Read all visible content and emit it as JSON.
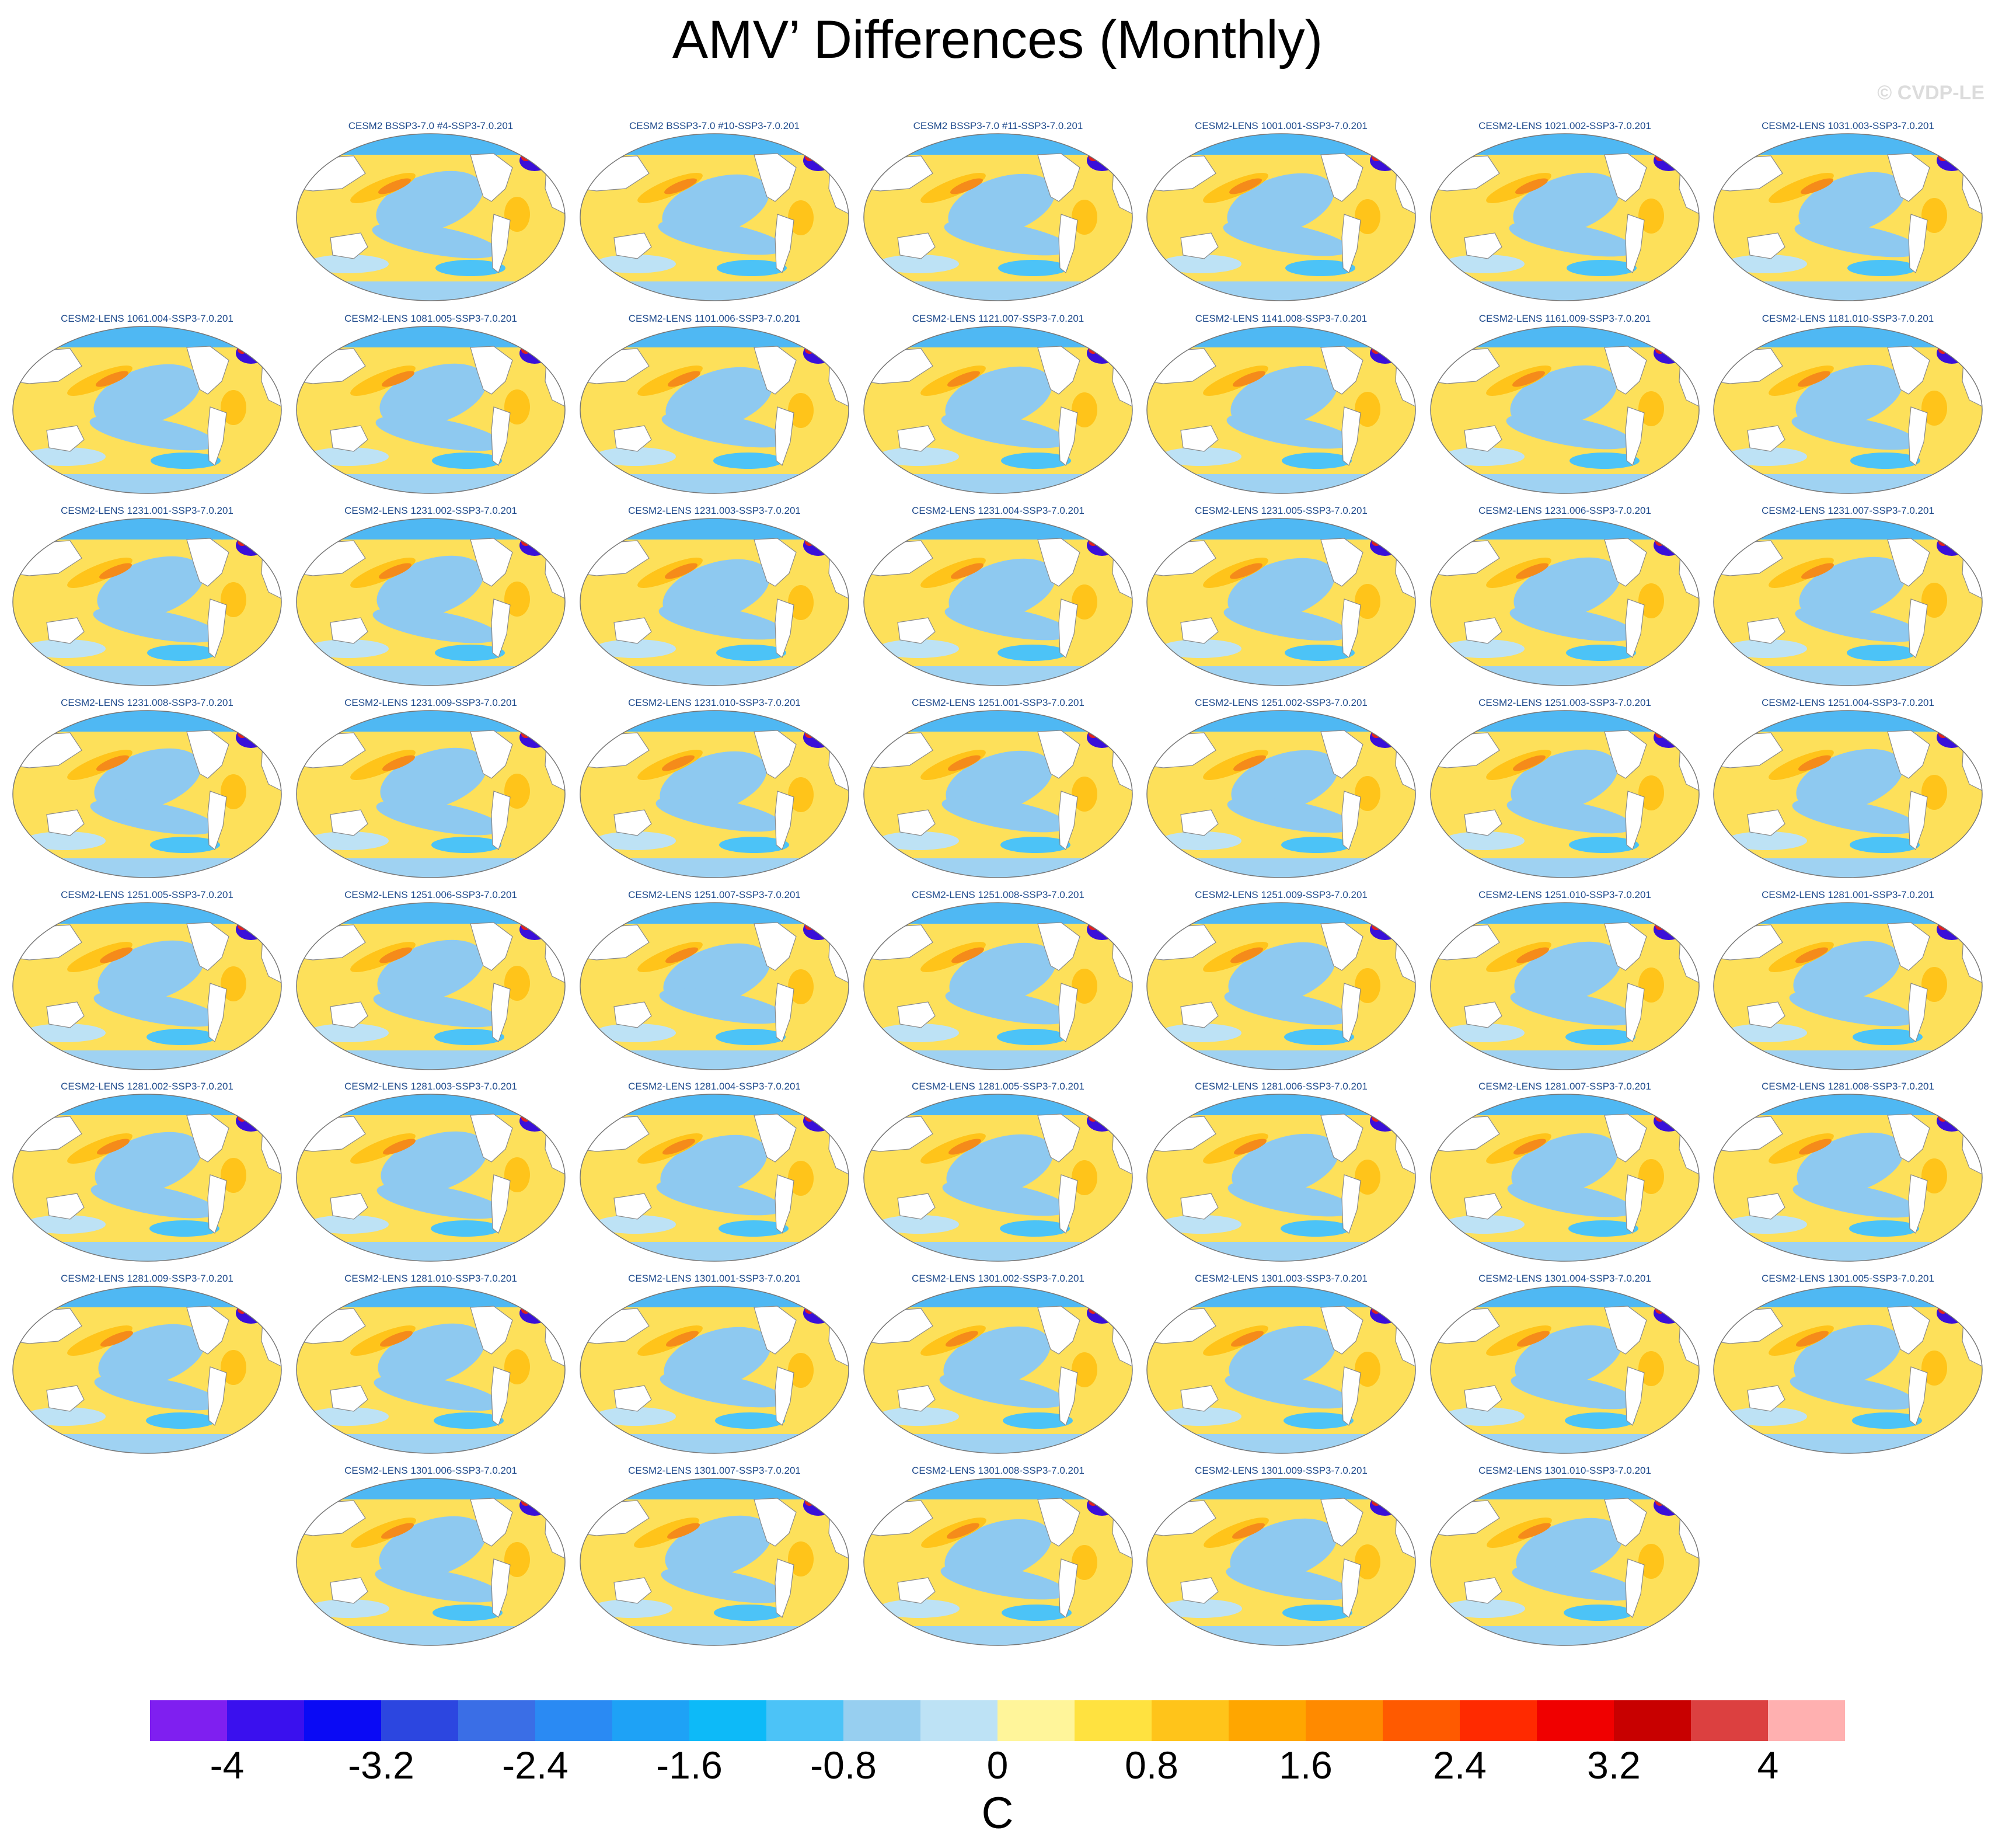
{
  "title": "AMV’ Differences (Monthly)",
  "watermark": "© CVDP-LE",
  "units": "C",
  "colors": {
    "ocean_base": "#fde05a",
    "cool_pool": "#8ec9f0",
    "cool_deep": "#2b6fe0",
    "warm_spot": "#f58b1a",
    "north_atlantic": "#3a10d9",
    "coast": "#8a8a8a",
    "title_text": "#1e4a8c"
  },
  "colorbar": {
    "colors": [
      "#7f1ff0",
      "#3a10ee",
      "#0a0af5",
      "#2c46e0",
      "#3a6ee6",
      "#2a8af3",
      "#1ea2f6",
      "#0dbaf8",
      "#4cc3f7",
      "#97cff0",
      "#bde2f5",
      "#fff59a",
      "#ffe240",
      "#ffc41a",
      "#ffa600",
      "#ff8a00",
      "#ff5a00",
      "#ff2a00",
      "#f00000",
      "#c80000",
      "#dc4040",
      "#ffb0b0"
    ],
    "labels": [
      "-4",
      "-3.2",
      "-2.4",
      "-1.6",
      "-0.8",
      "0",
      "0.8",
      "1.6",
      "2.4",
      "3.2",
      "4"
    ]
  },
  "rows": [
    {
      "start_col": 1,
      "panels": [
        "CESM2 BSSP3-7.0 #4-SSP3-7.0.201",
        "CESM2 BSSP3-7.0 #10-SSP3-7.0.201",
        "CESM2 BSSP3-7.0 #11-SSP3-7.0.201",
        "CESM2-LENS 1001.001-SSP3-7.0.201",
        "CESM2-LENS 1021.002-SSP3-7.0.201",
        "CESM2-LENS 1031.003-SSP3-7.0.201"
      ]
    },
    {
      "start_col": 0,
      "panels": [
        "CESM2-LENS 1061.004-SSP3-7.0.201",
        "CESM2-LENS 1081.005-SSP3-7.0.201",
        "CESM2-LENS 1101.006-SSP3-7.0.201",
        "CESM2-LENS 1121.007-SSP3-7.0.201",
        "CESM2-LENS 1141.008-SSP3-7.0.201",
        "CESM2-LENS 1161.009-SSP3-7.0.201",
        "CESM2-LENS 1181.010-SSP3-7.0.201"
      ]
    },
    {
      "start_col": 0,
      "panels": [
        "CESM2-LENS 1231.001-SSP3-7.0.201",
        "CESM2-LENS 1231.002-SSP3-7.0.201",
        "CESM2-LENS 1231.003-SSP3-7.0.201",
        "CESM2-LENS 1231.004-SSP3-7.0.201",
        "CESM2-LENS 1231.005-SSP3-7.0.201",
        "CESM2-LENS 1231.006-SSP3-7.0.201",
        "CESM2-LENS 1231.007-SSP3-7.0.201"
      ]
    },
    {
      "start_col": 0,
      "panels": [
        "CESM2-LENS 1231.008-SSP3-7.0.201",
        "CESM2-LENS 1231.009-SSP3-7.0.201",
        "CESM2-LENS 1231.010-SSP3-7.0.201",
        "CESM2-LENS 1251.001-SSP3-7.0.201",
        "CESM2-LENS 1251.002-SSP3-7.0.201",
        "CESM2-LENS 1251.003-SSP3-7.0.201",
        "CESM2-LENS 1251.004-SSP3-7.0.201"
      ]
    },
    {
      "start_col": 0,
      "panels": [
        "CESM2-LENS 1251.005-SSP3-7.0.201",
        "CESM2-LENS 1251.006-SSP3-7.0.201",
        "CESM2-LENS 1251.007-SSP3-7.0.201",
        "CESM2-LENS 1251.008-SSP3-7.0.201",
        "CESM2-LENS 1251.009-SSP3-7.0.201",
        "CESM2-LENS 1251.010-SSP3-7.0.201",
        "CESM2-LENS 1281.001-SSP3-7.0.201"
      ]
    },
    {
      "start_col": 0,
      "panels": [
        "CESM2-LENS 1281.002-SSP3-7.0.201",
        "CESM2-LENS 1281.003-SSP3-7.0.201",
        "CESM2-LENS 1281.004-SSP3-7.0.201",
        "CESM2-LENS 1281.005-SSP3-7.0.201",
        "CESM2-LENS 1281.006-SSP3-7.0.201",
        "CESM2-LENS 1281.007-SSP3-7.0.201",
        "CESM2-LENS 1281.008-SSP3-7.0.201"
      ]
    },
    {
      "start_col": 0,
      "panels": [
        "CESM2-LENS 1281.009-SSP3-7.0.201",
        "CESM2-LENS 1281.010-SSP3-7.0.201",
        "CESM2-LENS 1301.001-SSP3-7.0.201",
        "CESM2-LENS 1301.002-SSP3-7.0.201",
        "CESM2-LENS 1301.003-SSP3-7.0.201",
        "CESM2-LENS 1301.004-SSP3-7.0.201",
        "CESM2-LENS 1301.005-SSP3-7.0.201"
      ]
    },
    {
      "start_col": 1,
      "panels": [
        "CESM2-LENS 1301.006-SSP3-7.0.201",
        "CESM2-LENS 1301.007-SSP3-7.0.201",
        "CESM2-LENS 1301.008-SSP3-7.0.201",
        "CESM2-LENS 1301.009-SSP3-7.0.201",
        "CESM2-LENS 1301.010-SSP3-7.0.201"
      ]
    }
  ]
}
